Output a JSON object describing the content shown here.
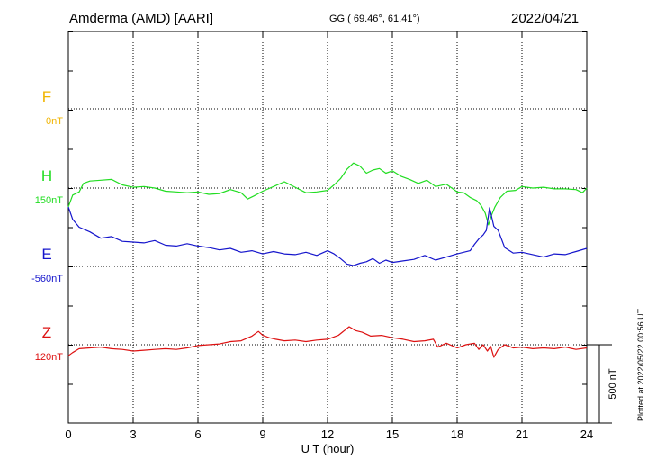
{
  "header": {
    "station": "Amderma (AMD)  [AARI]",
    "coords": "GG ( 69.46°,  61.41°)",
    "date": "2022/04/21"
  },
  "footer": {
    "plotted": "Plotted at 2022/05/22 00:56 UT"
  },
  "chart_data": {
    "type": "line",
    "xlabel": "U T (hour)",
    "xlim": [
      0,
      24
    ],
    "xticks": [
      0,
      3,
      6,
      9,
      12,
      15,
      18,
      21,
      24
    ],
    "scale_bar_label": "500 nT",
    "scale_bar_nT": 500,
    "grid": true,
    "series": [
      {
        "name": "F",
        "baseline_label": "0nT",
        "color": "#f0b400",
        "x": [],
        "values": []
      },
      {
        "name": "H",
        "baseline_label": "150nT",
        "color": "#22dd22",
        "x": [
          0,
          0.2,
          0.5,
          0.7,
          1.0,
          1.5,
          2.0,
          2.5,
          3.0,
          3.5,
          4.0,
          4.5,
          5.0,
          5.5,
          6.0,
          6.5,
          7.0,
          7.5,
          8.0,
          8.3,
          8.6,
          9.0,
          9.5,
          10.0,
          10.5,
          11.0,
          11.5,
          12.0,
          12.3,
          12.6,
          12.9,
          13.2,
          13.5,
          13.8,
          14.1,
          14.4,
          14.7,
          15.0,
          15.4,
          15.8,
          16.2,
          16.6,
          17.0,
          17.5,
          18.0,
          18.3,
          18.6,
          18.9,
          19.1,
          19.3,
          19.45,
          19.6,
          19.75,
          20.0,
          20.3,
          20.7,
          21.0,
          21.5,
          22.0,
          22.5,
          23.0,
          23.5,
          23.8,
          24.0
        ],
        "values": [
          -120,
          -45,
          -25,
          30,
          45,
          50,
          55,
          20,
          5,
          10,
          0,
          -20,
          -25,
          -30,
          -25,
          -40,
          -35,
          -10,
          -30,
          -70,
          -50,
          -20,
          10,
          40,
          5,
          -30,
          -25,
          -15,
          20,
          60,
          120,
          160,
          140,
          95,
          115,
          125,
          95,
          110,
          75,
          55,
          30,
          50,
          10,
          25,
          -25,
          -30,
          -60,
          -80,
          -110,
          -160,
          -235,
          -170,
          -120,
          -60,
          -20,
          -15,
          10,
          0,
          5,
          -5,
          -5,
          -10,
          -30,
          0
        ]
      },
      {
        "name": "E",
        "baseline_label": "-560nT",
        "color": "#1515cc",
        "x": [
          0,
          0.2,
          0.5,
          1.0,
          1.5,
          2.0,
          2.5,
          3.0,
          3.5,
          4.0,
          4.5,
          5.0,
          5.5,
          6.0,
          6.5,
          7.0,
          7.5,
          8.0,
          8.5,
          9.0,
          9.5,
          10.0,
          10.5,
          11.0,
          11.5,
          12.0,
          12.3,
          12.6,
          12.9,
          13.2,
          13.5,
          13.8,
          14.1,
          14.4,
          14.7,
          15.0,
          15.5,
          16.0,
          16.5,
          17.0,
          17.5,
          18.0,
          18.3,
          18.6,
          18.8,
          19.0,
          19.2,
          19.35,
          19.5,
          19.7,
          19.9,
          20.2,
          20.6,
          21.0,
          21.5,
          22.0,
          22.5,
          23.0,
          23.5,
          24.0
        ],
        "values": [
          380,
          300,
          250,
          220,
          180,
          190,
          160,
          155,
          150,
          165,
          135,
          130,
          145,
          130,
          120,
          105,
          115,
          90,
          100,
          80,
          95,
          80,
          75,
          90,
          70,
          100,
          80,
          50,
          15,
          5,
          20,
          30,
          50,
          20,
          40,
          25,
          35,
          45,
          70,
          40,
          60,
          80,
          90,
          100,
          140,
          175,
          200,
          230,
          375,
          255,
          230,
          120,
          85,
          90,
          75,
          60,
          80,
          75,
          95,
          115
        ]
      },
      {
        "name": "Z",
        "baseline_label": "120nT",
        "color": "#dd1111",
        "x": [
          0,
          0.2,
          0.5,
          1.0,
          1.5,
          2.0,
          2.5,
          3.0,
          3.5,
          4.0,
          4.5,
          5.0,
          5.5,
          6.0,
          6.5,
          7.0,
          7.5,
          8.0,
          8.5,
          8.8,
          9.0,
          9.3,
          9.6,
          10.0,
          10.5,
          11.0,
          11.5,
          12.0,
          12.5,
          13.0,
          13.3,
          13.6,
          14.0,
          14.5,
          15.0,
          15.5,
          16.0,
          16.5,
          16.9,
          17.1,
          17.5,
          18.0,
          18.4,
          18.8,
          19.0,
          19.2,
          19.4,
          19.55,
          19.7,
          19.9,
          20.2,
          20.6,
          21.0,
          21.5,
          22.0,
          22.5,
          23.0,
          23.5,
          24.0
        ],
        "values": [
          -70,
          -50,
          -25,
          -20,
          -15,
          -25,
          -30,
          -40,
          -35,
          -30,
          -25,
          -30,
          -20,
          -5,
          0,
          5,
          20,
          25,
          55,
          85,
          60,
          45,
          35,
          25,
          30,
          20,
          30,
          35,
          60,
          115,
          90,
          80,
          55,
          60,
          45,
          35,
          20,
          25,
          35,
          -15,
          10,
          -20,
          0,
          10,
          -30,
          0,
          -40,
          -10,
          -80,
          -30,
          0,
          -20,
          -15,
          -25,
          -20,
          -25,
          -15,
          -30,
          -20
        ]
      }
    ]
  }
}
